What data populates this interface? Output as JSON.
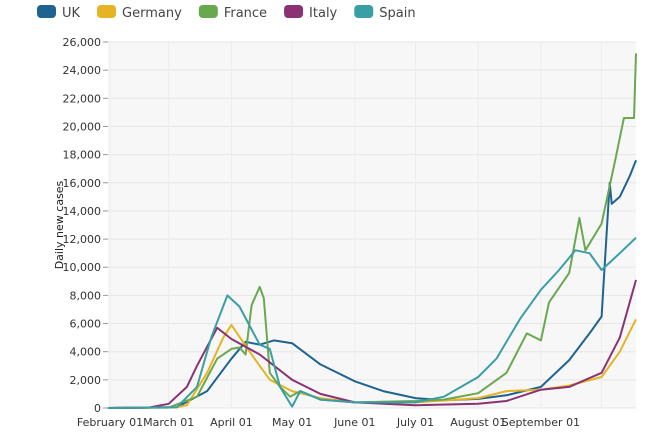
{
  "chart_data": {
    "type": "line",
    "title": "",
    "xlabel": "",
    "ylabel": "Daily new cases",
    "ylim": [
      0,
      26000
    ],
    "xlim": [
      "01-31",
      "10-18"
    ],
    "grid": true,
    "legend_position": "top-left",
    "y_ticks": [
      "0",
      "2,000",
      "4,000",
      "6,000",
      "8,000",
      "10,000",
      "12,000",
      "14,000",
      "16,000",
      "18,000",
      "20,000",
      "22,000",
      "24,000",
      "26,000"
    ],
    "x_ticks": [
      {
        "date": "02-01",
        "label": "February 01"
      },
      {
        "date": "03-01",
        "label": "March 01"
      },
      {
        "date": "04-01",
        "label": "April 01"
      },
      {
        "date": "05-01",
        "label": "May 01"
      },
      {
        "date": "06-01",
        "label": "June 01"
      },
      {
        "date": "07-01",
        "label": "July 01"
      },
      {
        "date": "08-01",
        "label": "August 01"
      },
      {
        "date": "09-01",
        "label": "September 01"
      },
      {
        "date": "10-01",
        "label": ""
      }
    ],
    "series": [
      {
        "name": "UK",
        "color": "#1f6391",
        "points": [
          [
            "01-31",
            0
          ],
          [
            "03-05",
            50
          ],
          [
            "03-20",
            1200
          ],
          [
            "04-01",
            3500
          ],
          [
            "04-08",
            4700
          ],
          [
            "04-15",
            4500
          ],
          [
            "04-22",
            4800
          ],
          [
            "05-01",
            4600
          ],
          [
            "05-15",
            3100
          ],
          [
            "06-01",
            1900
          ],
          [
            "06-15",
            1200
          ],
          [
            "07-01",
            700
          ],
          [
            "07-15",
            550
          ],
          [
            "08-01",
            650
          ],
          [
            "08-15",
            900
          ],
          [
            "09-01",
            1500
          ],
          [
            "09-15",
            3400
          ],
          [
            "09-25",
            5300
          ],
          [
            "10-01",
            6500
          ],
          [
            "10-05",
            16000
          ],
          [
            "10-06",
            14500
          ],
          [
            "10-10",
            15000
          ],
          [
            "10-15",
            16500
          ],
          [
            "10-18",
            17600
          ]
        ]
      },
      {
        "name": "Germany",
        "color": "#e6b422",
        "points": [
          [
            "01-31",
            0
          ],
          [
            "03-05",
            50
          ],
          [
            "03-10",
            200
          ],
          [
            "03-20",
            2500
          ],
          [
            "03-28",
            5000
          ],
          [
            "04-01",
            5900
          ],
          [
            "04-10",
            4000
          ],
          [
            "04-15",
            3000
          ],
          [
            "04-20",
            2000
          ],
          [
            "05-01",
            1200
          ],
          [
            "05-15",
            700
          ],
          [
            "06-01",
            400
          ],
          [
            "07-01",
            400
          ],
          [
            "08-01",
            700
          ],
          [
            "08-15",
            1200
          ],
          [
            "09-01",
            1300
          ],
          [
            "09-15",
            1600
          ],
          [
            "10-01",
            2200
          ],
          [
            "10-10",
            4000
          ],
          [
            "10-18",
            6300
          ]
        ]
      },
      {
        "name": "France",
        "color": "#6aa84f",
        "points": [
          [
            "01-31",
            0
          ],
          [
            "03-01",
            30
          ],
          [
            "03-15",
            800
          ],
          [
            "03-25",
            3500
          ],
          [
            "04-01",
            4200
          ],
          [
            "04-05",
            4300
          ],
          [
            "04-08",
            3800
          ],
          [
            "04-11",
            7300
          ],
          [
            "04-15",
            8600
          ],
          [
            "04-17",
            7800
          ],
          [
            "04-20",
            2500
          ],
          [
            "04-25",
            1500
          ],
          [
            "04-30",
            800
          ],
          [
            "05-05",
            1200
          ],
          [
            "05-15",
            600
          ],
          [
            "06-01",
            400
          ],
          [
            "07-01",
            500
          ],
          [
            "07-15",
            600
          ],
          [
            "08-01",
            1050
          ],
          [
            "08-15",
            2500
          ],
          [
            "08-25",
            5300
          ],
          [
            "09-01",
            4800
          ],
          [
            "09-05",
            7500
          ],
          [
            "09-15",
            9600
          ],
          [
            "09-20",
            13500
          ],
          [
            "09-23",
            11200
          ],
          [
            "10-01",
            13100
          ],
          [
            "10-08",
            17800
          ],
          [
            "10-12",
            20600
          ],
          [
            "10-17",
            20600
          ],
          [
            "10-18",
            25200
          ]
        ]
      },
      {
        "name": "Italy",
        "color": "#8b3272",
        "points": [
          [
            "01-31",
            0
          ],
          [
            "02-20",
            30
          ],
          [
            "03-01",
            300
          ],
          [
            "03-10",
            1500
          ],
          [
            "03-15",
            3000
          ],
          [
            "03-25",
            5700
          ],
          [
            "04-01",
            4900
          ],
          [
            "04-15",
            3800
          ],
          [
            "05-01",
            2000
          ],
          [
            "05-15",
            1000
          ],
          [
            "06-01",
            400
          ],
          [
            "07-01",
            200
          ],
          [
            "08-01",
            300
          ],
          [
            "08-15",
            500
          ],
          [
            "09-01",
            1300
          ],
          [
            "09-15",
            1500
          ],
          [
            "10-01",
            2500
          ],
          [
            "10-10",
            5000
          ],
          [
            "10-18",
            9100
          ]
        ]
      },
      {
        "name": "Spain",
        "color": "#3a9ea5",
        "points": [
          [
            "01-31",
            0
          ],
          [
            "03-05",
            50
          ],
          [
            "03-15",
            1500
          ],
          [
            "03-22",
            5000
          ],
          [
            "03-30",
            8000
          ],
          [
            "04-05",
            7200
          ],
          [
            "04-15",
            4500
          ],
          [
            "04-20",
            4200
          ],
          [
            "04-25",
            1500
          ],
          [
            "05-01",
            100
          ],
          [
            "05-05",
            1200
          ],
          [
            "05-15",
            600
          ],
          [
            "06-01",
            400
          ],
          [
            "07-01",
            400
          ],
          [
            "07-15",
            800
          ],
          [
            "08-01",
            2200
          ],
          [
            "08-10",
            3500
          ],
          [
            "08-22",
            6400
          ],
          [
            "09-01",
            8400
          ],
          [
            "09-10",
            9800
          ],
          [
            "09-18",
            11200
          ],
          [
            "09-25",
            11000
          ],
          [
            "10-01",
            9800
          ],
          [
            "10-10",
            11000
          ],
          [
            "10-18",
            12100
          ]
        ]
      }
    ]
  }
}
